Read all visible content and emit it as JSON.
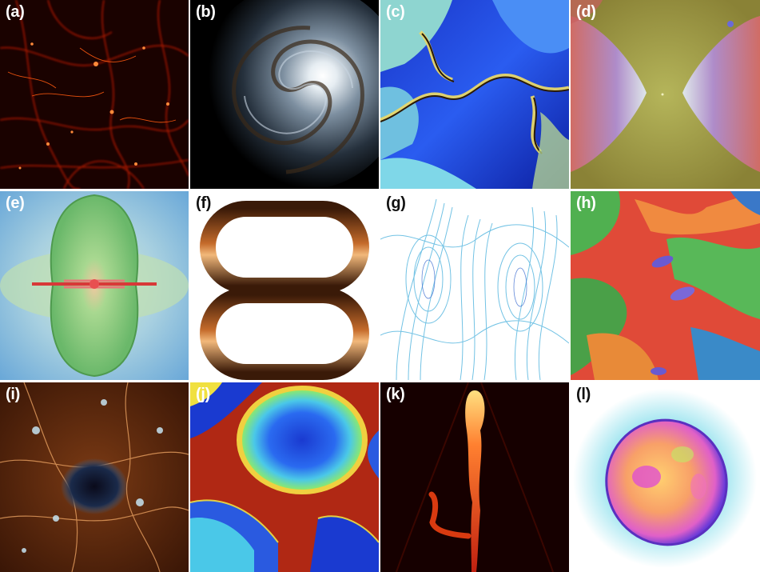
{
  "panels": [
    {
      "id": "a",
      "label": "(a)"
    },
    {
      "id": "b",
      "label": "(b)"
    },
    {
      "id": "c",
      "label": "(c)"
    },
    {
      "id": "d",
      "label": "(d)"
    },
    {
      "id": "e",
      "label": "(e)"
    },
    {
      "id": "f",
      "label": "(f)"
    },
    {
      "id": "g",
      "label": "(g)"
    },
    {
      "id": "h",
      "label": "(h)"
    },
    {
      "id": "i",
      "label": "(i)"
    },
    {
      "id": "j",
      "label": "(j)"
    },
    {
      "id": "k",
      "label": "(k)"
    },
    {
      "id": "l",
      "label": "(l)"
    }
  ]
}
